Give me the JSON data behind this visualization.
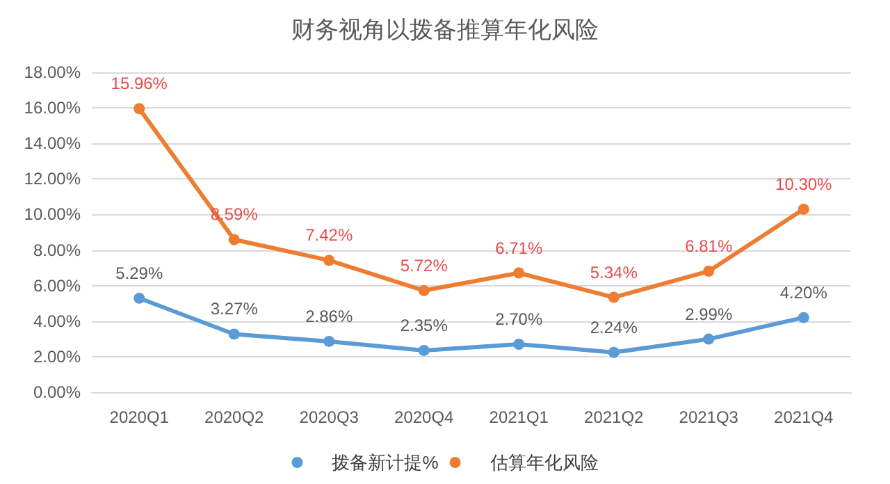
{
  "chart_data": {
    "type": "line",
    "title": "财务视角以拨备推算年化风险",
    "categories": [
      "2020Q1",
      "2020Q2",
      "2020Q3",
      "2020Q4",
      "2021Q1",
      "2021Q2",
      "2021Q3",
      "2021Q4"
    ],
    "series": [
      {
        "name": "拨备新计提%",
        "color": "#5b9bd5",
        "values": [
          5.29,
          3.27,
          2.86,
          2.35,
          2.7,
          2.24,
          2.99,
          4.2
        ],
        "value_labels": [
          "5.29%",
          "3.27%",
          "2.86%",
          "2.35%",
          "2.70%",
          "2.24%",
          "2.99%",
          "4.20%"
        ]
      },
      {
        "name": "估算年化风险",
        "color": "#ed7d31",
        "values": [
          15.96,
          8.59,
          7.42,
          5.72,
          6.71,
          5.34,
          6.81,
          10.3
        ],
        "value_labels": [
          "15.96%",
          "8.59%",
          "7.42%",
          "5.72%",
          "6.71%",
          "5.34%",
          "6.81%",
          "10.30%"
        ]
      }
    ],
    "ylim": [
      0,
      18
    ],
    "yticks": [
      {
        "value": 0,
        "label": "0.00%"
      },
      {
        "value": 2,
        "label": "2.00%"
      },
      {
        "value": 4,
        "label": "4.00%"
      },
      {
        "value": 6,
        "label": "6.00%"
      },
      {
        "value": 8,
        "label": "8.00%"
      },
      {
        "value": 10,
        "label": "10.00%"
      },
      {
        "value": 12,
        "label": "12.00%"
      },
      {
        "value": 14,
        "label": "14.00%"
      },
      {
        "value": 16,
        "label": "16.00%"
      },
      {
        "value": 18,
        "label": "18.00%"
      }
    ],
    "grid": "y",
    "legend": "bottom",
    "marker": "circle",
    "line_style": "solid"
  }
}
